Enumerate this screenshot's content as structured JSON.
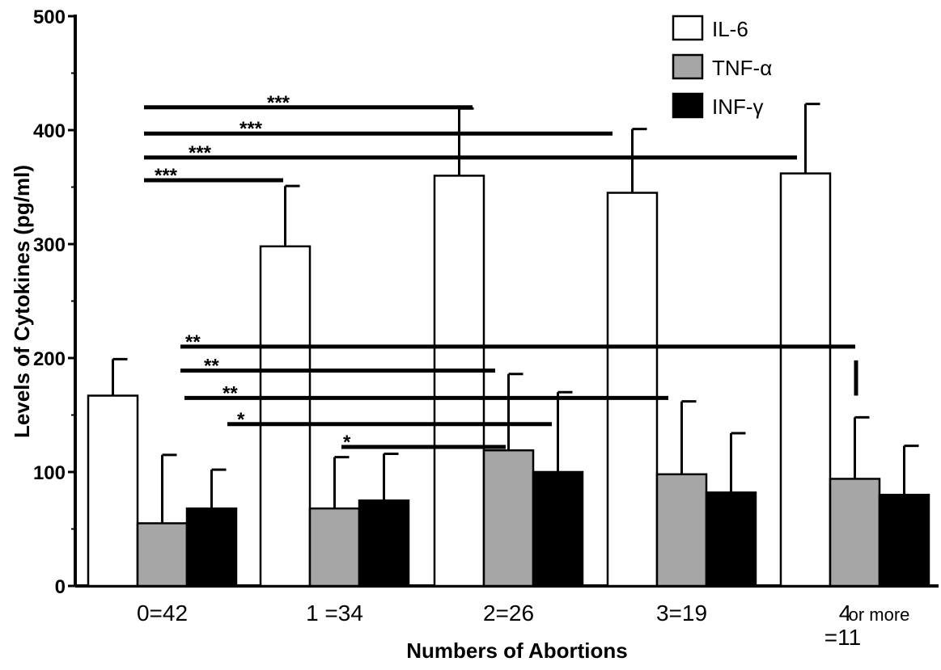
{
  "chart_data": {
    "type": "bar",
    "xlabel": "Numbers of Abortions",
    "ylabel": "Levels of Cytokines (pg/ml)",
    "ylim": [
      0,
      500
    ],
    "yticks": [
      0,
      100,
      200,
      300,
      400,
      500
    ],
    "grid": false,
    "legend_position": "top-right",
    "categories": [
      {
        "main": "0=42",
        "sub": ""
      },
      {
        "main": "1 =34",
        "sub": ""
      },
      {
        "main": "2=26",
        "sub": ""
      },
      {
        "main": "3=19",
        "sub": ""
      },
      {
        "main": "4",
        "extra": "or more",
        "sub": "=11"
      }
    ],
    "series": [
      {
        "name": "IL-6",
        "color": "#ffffff",
        "values": [
          167,
          298,
          360,
          345,
          362
        ],
        "errors": [
          32,
          53,
          59,
          56,
          61
        ]
      },
      {
        "name": "TNF-α",
        "color": "#a6a6a6",
        "values": [
          55,
          68,
          119,
          98,
          94
        ],
        "errors": [
          60,
          45,
          67,
          64,
          54
        ]
      },
      {
        "name": "INF-γ",
        "color": "#000000",
        "values": [
          68,
          75,
          100,
          82,
          80
        ],
        "errors": [
          34,
          41,
          70,
          52,
          43
        ]
      }
    ],
    "annotations": [
      {
        "label": "***",
        "y": 420,
        "from_cat": 0,
        "to_cat": 2
      },
      {
        "label": "***",
        "y": 397,
        "from_cat": 0,
        "to_cat": 3
      },
      {
        "label": "***",
        "y": 376,
        "from_cat": 0,
        "to_cat": 4
      },
      {
        "label": "***",
        "y": 356,
        "from_cat": 0,
        "to_cat": 1
      },
      {
        "label": "**",
        "y": 210,
        "from_cat": 0,
        "to_cat": 4
      },
      {
        "label": "**",
        "y": 189,
        "from_cat": 0,
        "to_cat": 2
      },
      {
        "label": "**",
        "y": 165,
        "from_cat": 0,
        "to_cat": 3
      },
      {
        "label": "*",
        "y": 142,
        "from_cat": 1,
        "to_cat": 2
      },
      {
        "label": "*",
        "y": 122,
        "from_cat": 1,
        "to_cat": 2
      }
    ]
  }
}
